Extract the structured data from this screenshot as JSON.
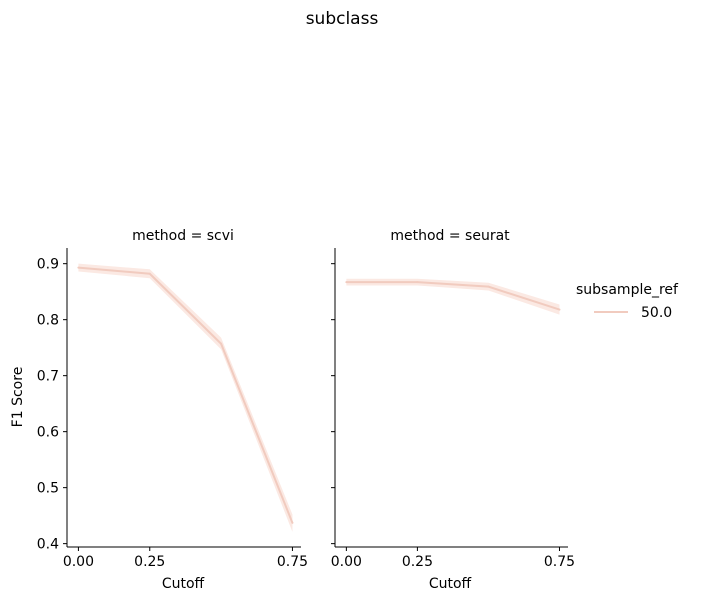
{
  "chart_data": {
    "type": "line",
    "title": "subclass",
    "ylabel": "F1 Score",
    "x_ticks": [
      "0.00",
      "0.25",
      "0.75"
    ],
    "y_ticks": [
      "0.4",
      "0.5",
      "0.6",
      "0.7",
      "0.8",
      "0.9"
    ],
    "xlim": [
      -0.04,
      0.78
    ],
    "ylim": [
      0.394,
      0.928
    ],
    "line_color": "#f1cbbf",
    "band_color": "#fbe9e3",
    "axis_color": "#000000",
    "legend": {
      "title": "subsample_ref",
      "entries": [
        "50.0"
      ],
      "placement": "right"
    },
    "panels": [
      {
        "title": "method = scvi",
        "xlabel": "Cutoff",
        "y_tick_labels_shown": true,
        "series": [
          {
            "name": "50.0",
            "x": [
              0.0,
              0.25,
              0.5,
              0.75
            ],
            "y": [
              0.893,
              0.882,
              0.757,
              0.437
            ],
            "ci_low": [
              0.886,
              0.874,
              0.747,
              0.421
            ],
            "ci_high": [
              0.9,
              0.89,
              0.768,
              0.452
            ]
          }
        ]
      },
      {
        "title": "method = seurat",
        "xlabel": "Cutoff",
        "y_tick_labels_shown": false,
        "series": [
          {
            "name": "50.0",
            "x": [
              0.0,
              0.25,
              0.5,
              0.75
            ],
            "y": [
              0.867,
              0.867,
              0.859,
              0.818
            ],
            "ci_low": [
              0.861,
              0.861,
              0.852,
              0.809
            ],
            "ci_high": [
              0.873,
              0.873,
              0.866,
              0.827
            ]
          }
        ]
      }
    ]
  }
}
